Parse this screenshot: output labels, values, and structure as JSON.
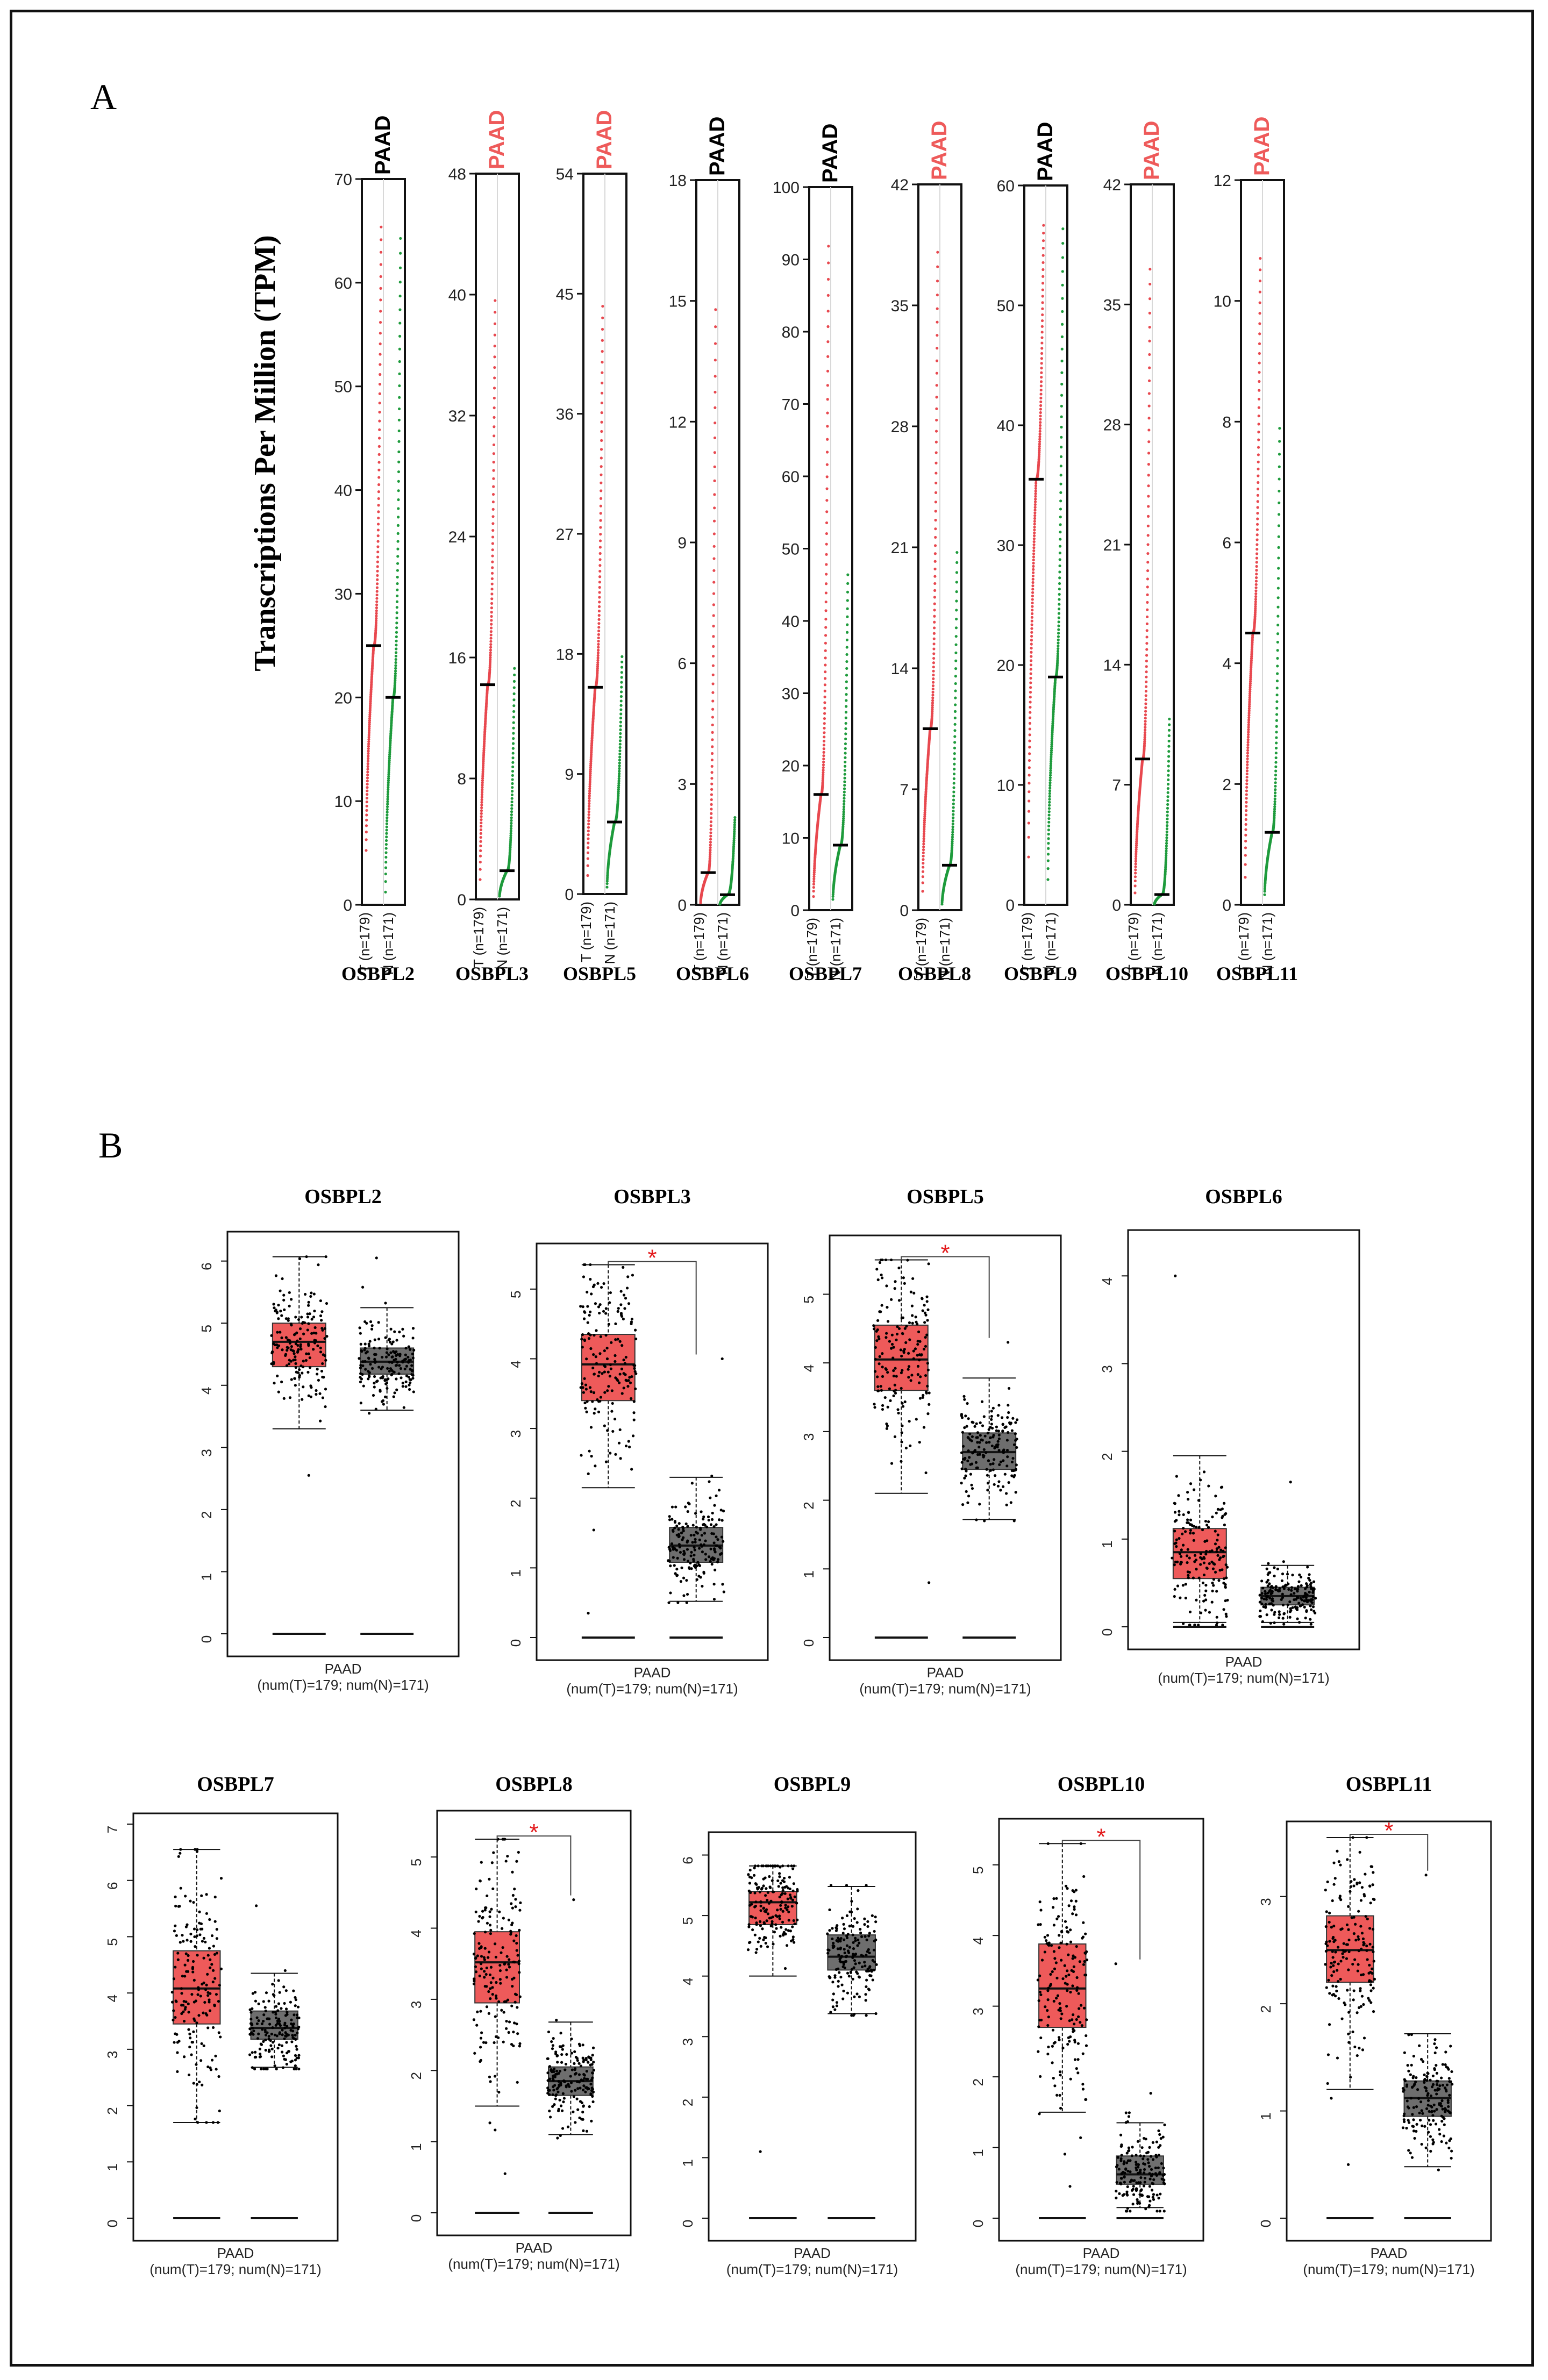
{
  "panel_labels": {
    "a": "A",
    "b": "B",
    "b_stray": "B"
  },
  "panel_a": {
    "ylabel": "Transcriptions Per Million (TPM)",
    "group_labels": [
      "T (n=179)",
      "N (n=171)"
    ],
    "tumor_color": "#e8484f",
    "normal_color": "#1e9b3c",
    "significant_color": "#ee5a5a",
    "plain_color": "#000000"
  },
  "panel_b": {
    "xlabel": "PAAD",
    "sample_note": "(num(T)=179; num(N)=171)",
    "tumor_box_color": "#ee5a5a",
    "normal_box_color": "#6e6e6e",
    "sig_marker": "*",
    "sig_color": "#e31a1c"
  },
  "chart_data": [
    {
      "type": "scatter",
      "panel": "A",
      "title": "PAAD",
      "significant": false,
      "gene": "OSBPL2",
      "ylim": [
        0,
        70
      ],
      "yticks": [
        0,
        10,
        20,
        30,
        40,
        50,
        60,
        70
      ],
      "tick_labels": [
        "0",
        "10",
        "20",
        "30",
        "40",
        "50",
        "60",
        "70"
      ],
      "tumor": {
        "median": 25,
        "min": 4,
        "max": 66
      },
      "normal": {
        "median": 20,
        "min": 0,
        "max": 65
      }
    },
    {
      "type": "scatter",
      "panel": "A",
      "title": "PAAD",
      "significant": true,
      "gene": "OSBPL3",
      "ylim": [
        0,
        48
      ],
      "yticks": [
        0,
        8,
        16,
        24,
        32,
        40,
        48
      ],
      "tick_labels": [
        "0",
        "8",
        "16",
        "24",
        "32",
        "40",
        "48"
      ],
      "tumor": {
        "median": 14.2,
        "min": 0.5,
        "max": 40
      },
      "normal": {
        "median": 1.9,
        "min": 0.1,
        "max": 15.5
      }
    },
    {
      "type": "scatter",
      "panel": "A",
      "title": "PAAD",
      "significant": true,
      "gene": "OSBPL5",
      "ylim": [
        0,
        54
      ],
      "yticks": [
        0,
        9,
        18,
        27,
        36,
        45,
        54
      ],
      "tick_labels": [
        "0",
        "9",
        "18",
        "27",
        "36",
        "45",
        "54"
      ],
      "tumor": {
        "median": 15.5,
        "min": 0.5,
        "max": 44.5
      },
      "normal": {
        "median": 5.4,
        "min": 0.2,
        "max": 18
      }
    },
    {
      "type": "scatter",
      "panel": "A",
      "title": "PAAD",
      "significant": false,
      "gene": "OSBPL6",
      "ylim": [
        0,
        18
      ],
      "yticks": [
        0,
        3,
        6,
        9,
        12,
        15,
        18
      ],
      "tick_labels": [
        "0",
        "3",
        "6",
        "9",
        "12",
        "15",
        "18"
      ],
      "tumor": {
        "median": 0.8,
        "min": 0,
        "max": 15
      },
      "normal": {
        "median": 0.25,
        "min": 0,
        "max": 2.2
      }
    },
    {
      "type": "scatter",
      "panel": "A",
      "title": "PAAD",
      "significant": false,
      "gene": "OSBPL7",
      "ylim": [
        0,
        100
      ],
      "yticks": [
        0,
        10,
        20,
        30,
        40,
        50,
        60,
        70,
        80,
        90,
        100
      ],
      "tick_labels": [
        "0",
        "10",
        "20",
        "30",
        "40",
        "50",
        "60",
        "70",
        "80",
        "90",
        "100"
      ],
      "tumor": {
        "median": 16,
        "min": 1,
        "max": 93
      },
      "normal": {
        "median": 9,
        "min": 1,
        "max": 47
      }
    },
    {
      "type": "scatter",
      "panel": "A",
      "title": "PAAD",
      "significant": true,
      "gene": "OSBPL8",
      "ylim": [
        0,
        42
      ],
      "yticks": [
        0,
        7,
        14,
        21,
        28,
        35,
        42
      ],
      "tick_labels": [
        "0",
        "7",
        "14",
        "21",
        "28",
        "35",
        "42"
      ],
      "tumor": {
        "median": 10.5,
        "min": 0.5,
        "max": 38.5
      },
      "normal": {
        "median": 2.6,
        "min": 0.2,
        "max": 21
      }
    },
    {
      "type": "scatter",
      "panel": "A",
      "title": "PAAD",
      "significant": false,
      "gene": "OSBPL9",
      "ylim": [
        0,
        60
      ],
      "yticks": [
        0,
        10,
        20,
        30,
        40,
        50,
        60
      ],
      "tick_labels": [
        "0",
        "10",
        "20",
        "30",
        "40",
        "50",
        "60"
      ],
      "tumor": {
        "median": 35.5,
        "min": 2,
        "max": 57
      },
      "normal": {
        "median": 19,
        "min": 1,
        "max": 57
      }
    },
    {
      "type": "scatter",
      "panel": "A",
      "title": "PAAD",
      "significant": true,
      "gene": "OSBPL10",
      "ylim": [
        0,
        42
      ],
      "yticks": [
        0,
        7,
        14,
        21,
        28,
        35,
        42
      ],
      "tick_labels": [
        "0",
        "7",
        "14",
        "21",
        "28",
        "35",
        "42"
      ],
      "tumor": {
        "median": 8.5,
        "min": 0.2,
        "max": 37.5
      },
      "normal": {
        "median": 0.6,
        "min": 0,
        "max": 11
      }
    },
    {
      "type": "scatter",
      "panel": "A",
      "title": "PAAD",
      "significant": true,
      "gene": "OSBPL11",
      "ylim": [
        0,
        12
      ],
      "yticks": [
        0,
        2,
        4,
        6,
        8,
        10,
        12
      ],
      "tick_labels": [
        "0",
        "2",
        "4",
        "6",
        "8",
        "10",
        "12"
      ],
      "tumor": {
        "median": 4.5,
        "min": 0.2,
        "max": 10.8
      },
      "normal": {
        "median": 1.2,
        "min": 0.1,
        "max": 8
      }
    },
    {
      "type": "box",
      "panel": "B",
      "title": "OSBPL2",
      "significant": false,
      "ylim": [
        0,
        6.3
      ],
      "yticks": [
        0,
        1,
        2,
        3,
        4,
        5,
        6
      ],
      "tick_labels": [
        "0",
        "1",
        "2",
        "3",
        "4",
        "5",
        "6"
      ],
      "tumor": {
        "q1": 4.3,
        "median": 4.7,
        "q3": 5.0,
        "whisker_low": 3.3,
        "whisker_high": 6.07,
        "min": 2.55,
        "max": 6.07
      },
      "normal": {
        "q1": 4.18,
        "median": 4.38,
        "q3": 4.6,
        "whisker_low": 3.6,
        "whisker_high": 5.25,
        "min": 3.55,
        "max": 6.05
      }
    },
    {
      "type": "box",
      "panel": "B",
      "title": "OSBPL3",
      "significant": true,
      "ylim": [
        0,
        5.5
      ],
      "yticks": [
        0,
        1,
        2,
        3,
        4,
        5
      ],
      "tick_labels": [
        "0",
        "1",
        "2",
        "3",
        "4",
        "5"
      ],
      "tumor": {
        "q1": 3.4,
        "median": 3.92,
        "q3": 4.35,
        "whisker_low": 2.15,
        "whisker_high": 5.35,
        "min": 0.35,
        "max": 5.35
      },
      "normal": {
        "q1": 1.08,
        "median": 1.32,
        "q3": 1.58,
        "whisker_low": 0.52,
        "whisker_high": 2.3,
        "min": 0.5,
        "max": 4.0
      }
    },
    {
      "type": "box",
      "panel": "B",
      "title": "OSBPL5",
      "significant": true,
      "ylim": [
        0,
        5.7
      ],
      "yticks": [
        0,
        1,
        2,
        3,
        4,
        5
      ],
      "tick_labels": [
        "0",
        "1",
        "2",
        "3",
        "4",
        "5"
      ],
      "tumor": {
        "q1": 3.6,
        "median": 4.05,
        "q3": 4.55,
        "whisker_low": 2.1,
        "whisker_high": 5.5,
        "min": 0.8,
        "max": 5.5
      },
      "normal": {
        "q1": 2.45,
        "median": 2.7,
        "q3": 2.98,
        "whisker_low": 1.72,
        "whisker_high": 3.78,
        "min": 1.7,
        "max": 4.3
      }
    },
    {
      "type": "box",
      "panel": "B",
      "title": "OSBPL6",
      "significant": false,
      "ylim": [
        0,
        4.4
      ],
      "yticks": [
        0,
        1,
        2,
        3,
        4
      ],
      "tick_labels": [
        "0",
        "1",
        "2",
        "3",
        "4"
      ],
      "tumor": {
        "q1": 0.55,
        "median": 0.85,
        "q3": 1.12,
        "whisker_low": 0.05,
        "whisker_high": 1.95,
        "min": 0.02,
        "max": 4.0
      },
      "normal": {
        "q1": 0.25,
        "median": 0.35,
        "q3": 0.45,
        "whisker_low": 0.05,
        "whisker_high": 0.7,
        "min": 0.03,
        "max": 1.65
      }
    },
    {
      "type": "box",
      "panel": "B",
      "title": "OSBPL7",
      "significant": false,
      "ylim": [
        0,
        7
      ],
      "yticks": [
        0,
        1,
        2,
        3,
        4,
        5,
        6,
        7
      ],
      "tick_labels": [
        "0",
        "1",
        "2",
        "3",
        "4",
        "5",
        "6",
        "7"
      ],
      "tumor": {
        "q1": 3.45,
        "median": 4.08,
        "q3": 4.75,
        "whisker_low": 1.7,
        "whisker_high": 6.55,
        "min": 1.7,
        "max": 6.55
      },
      "normal": {
        "q1": 3.18,
        "median": 3.38,
        "q3": 3.68,
        "whisker_low": 2.68,
        "whisker_high": 4.35,
        "min": 2.65,
        "max": 5.55
      }
    },
    {
      "type": "box",
      "panel": "B",
      "title": "OSBPL8",
      "significant": true,
      "ylim": [
        0,
        5.5
      ],
      "yticks": [
        0,
        1,
        2,
        3,
        4,
        5
      ],
      "tick_labels": [
        "0",
        "1",
        "2",
        "3",
        "4",
        "5"
      ],
      "tumor": {
        "q1": 2.95,
        "median": 3.52,
        "q3": 3.95,
        "whisker_low": 1.5,
        "whisker_high": 5.25,
        "min": 0.55,
        "max": 5.25
      },
      "normal": {
        "q1": 1.65,
        "median": 1.85,
        "q3": 2.05,
        "whisker_low": 1.1,
        "whisker_high": 2.68,
        "min": 1.05,
        "max": 4.4
      }
    },
    {
      "type": "box",
      "panel": "B",
      "title": "OSBPL9",
      "significant": false,
      "ylim": [
        0,
        6.2
      ],
      "yticks": [
        0,
        1,
        2,
        3,
        4,
        5,
        6
      ],
      "tick_labels": [
        "0",
        "1",
        "2",
        "3",
        "4",
        "5",
        "6"
      ],
      "tumor": {
        "q1": 4.85,
        "median": 5.22,
        "q3": 5.4,
        "whisker_low": 4.0,
        "whisker_high": 5.82,
        "min": 1.1,
        "max": 5.82
      },
      "normal": {
        "q1": 4.1,
        "median": 4.32,
        "q3": 4.68,
        "whisker_low": 3.38,
        "whisker_high": 5.48,
        "min": 3.35,
        "max": 5.5
      }
    },
    {
      "type": "box",
      "panel": "B",
      "title": "OSBPL10",
      "significant": true,
      "ylim": [
        0,
        5.5
      ],
      "yticks": [
        0,
        1,
        2,
        3,
        4,
        5
      ],
      "tick_labels": [
        "0",
        "1",
        "2",
        "3",
        "4",
        "5"
      ],
      "tumor": {
        "q1": 2.7,
        "median": 3.25,
        "q3": 3.88,
        "whisker_low": 1.5,
        "whisker_high": 5.3,
        "min": 0.45,
        "max": 5.3
      },
      "normal": {
        "q1": 0.48,
        "median": 0.62,
        "q3": 0.88,
        "whisker_low": 0.15,
        "whisker_high": 1.35,
        "min": 0.1,
        "max": 3.6
      }
    },
    {
      "type": "box",
      "panel": "B",
      "title": "OSBPL11",
      "significant": true,
      "ylim": [
        0,
        3.6
      ],
      "yticks": [
        0,
        1,
        2,
        3
      ],
      "tick_labels": [
        "0",
        "1",
        "2",
        "3"
      ],
      "tumor": {
        "q1": 2.2,
        "median": 2.5,
        "q3": 2.82,
        "whisker_low": 1.2,
        "whisker_high": 3.55,
        "min": 0.5,
        "max": 3.55
      },
      "normal": {
        "q1": 0.95,
        "median": 1.12,
        "q3": 1.28,
        "whisker_low": 0.48,
        "whisker_high": 1.72,
        "min": 0.45,
        "max": 3.2
      }
    }
  ]
}
